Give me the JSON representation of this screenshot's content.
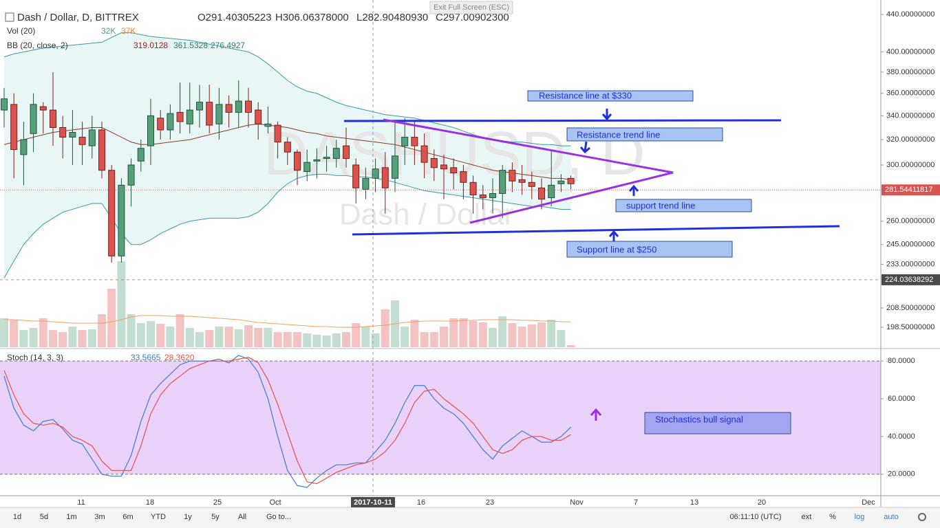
{
  "header": {
    "symbol": "Dash / Dollar, D, BITTREX",
    "open": "O291.40305223",
    "high": "H306.06378000",
    "low": "L282.90480930",
    "close": "C297.00902300",
    "vol_label": "Vol (20)",
    "vol_value": "32K",
    "vol_ma_value": "37K",
    "bb_label": "BB (20, close, 2)",
    "bb_mid": "319.0128",
    "bb_upper": "361.5328",
    "bb_lower": "276.4927",
    "exit": "Exit Full Screen (ESC)",
    "watermark": "DASHUSD, D",
    "watermark_sub": "Dash / Dollar"
  },
  "price_pane": {
    "log": true,
    "ylim": [
      188.7,
      456.5
    ],
    "up_color": "#53a07a",
    "down_color": "#d9534f",
    "yticks": [
      {
        "value": 440,
        "label": "440.00000000"
      },
      {
        "value": 400,
        "label": "400.00000000"
      },
      {
        "value": 380,
        "label": "380.00000000"
      },
      {
        "value": 360,
        "label": "360.00000000"
      },
      {
        "value": 340,
        "label": "340.00000000"
      },
      {
        "value": 320,
        "label": "320.00000000"
      },
      {
        "value": 300,
        "label": "300.00000000"
      },
      {
        "value": 260,
        "label": "260.00000000"
      },
      {
        "value": 245,
        "label": "245.00000000"
      },
      {
        "value": 233,
        "label": "233.00000000"
      },
      {
        "value": 208.5,
        "label": "208.50000000"
      },
      {
        "value": 198.5,
        "label": "198.50000000"
      }
    ],
    "last_price": {
      "value": 281.54411817,
      "label": "281.54411817"
    },
    "crosshair": {
      "value": 224.03638292,
      "label": "224.03638292"
    },
    "candles": [
      [
        345,
        365,
        330,
        355
      ],
      [
        350,
        360,
        290,
        312
      ],
      [
        308,
        335,
        285,
        320
      ],
      [
        325,
        360,
        310,
        350
      ],
      [
        348,
        352,
        325,
        345
      ],
      [
        345,
        380,
        315,
        330
      ],
      [
        330,
        340,
        305,
        322
      ],
      [
        322,
        345,
        300,
        326
      ],
      [
        322,
        335,
        300,
        316
      ],
      [
        315,
        340,
        305,
        328
      ],
      [
        328,
        335,
        290,
        296
      ],
      [
        296,
        300,
        234,
        238
      ],
      [
        238,
        290,
        234,
        285
      ],
      [
        285,
        305,
        270,
        300
      ],
      [
        303,
        320,
        295,
        313
      ],
      [
        315,
        355,
        300,
        340
      ],
      [
        338,
        345,
        320,
        328
      ],
      [
        328,
        350,
        320,
        342
      ],
      [
        343,
        370,
        325,
        335
      ],
      [
        333,
        370,
        325,
        345
      ],
      [
        345,
        368,
        330,
        352
      ],
      [
        352,
        368,
        325,
        332
      ],
      [
        333,
        365,
        320,
        350
      ],
      [
        350,
        358,
        330,
        343
      ],
      [
        343,
        372,
        330,
        353
      ],
      [
        353,
        365,
        330,
        343
      ],
      [
        345,
        352,
        320,
        333
      ],
      [
        331,
        348,
        325,
        333
      ],
      [
        332,
        335,
        305,
        318
      ],
      [
        318,
        322,
        300,
        310
      ],
      [
        310,
        312,
        285,
        296
      ],
      [
        295,
        312,
        288,
        302
      ],
      [
        303,
        313,
        290,
        304
      ],
      [
        305,
        315,
        295,
        306
      ],
      [
        305,
        320,
        298,
        313
      ],
      [
        315,
        330,
        298,
        305
      ],
      [
        300,
        305,
        272,
        283
      ],
      [
        282,
        298,
        275,
        290
      ],
      [
        290,
        305,
        280,
        297
      ],
      [
        298,
        310,
        265,
        283
      ],
      [
        290,
        335,
        280,
        307
      ],
      [
        315,
        338,
        300,
        322
      ],
      [
        322,
        335,
        300,
        315
      ],
      [
        315,
        325,
        290,
        302
      ],
      [
        305,
        312,
        288,
        298
      ],
      [
        300,
        308,
        275,
        297
      ],
      [
        298,
        305,
        282,
        294
      ],
      [
        295,
        300,
        275,
        287
      ],
      [
        287,
        292,
        265,
        278
      ],
      [
        278,
        285,
        268,
        276
      ],
      [
        276,
        290,
        265,
        279
      ],
      [
        279,
        300,
        262,
        296
      ],
      [
        296,
        302,
        280,
        288
      ],
      [
        289,
        300,
        278,
        287
      ],
      [
        287,
        295,
        275,
        284
      ],
      [
        283,
        290,
        268,
        275
      ],
      [
        276,
        312,
        270,
        285
      ],
      [
        286,
        293,
        280,
        288
      ],
      [
        290,
        292,
        282,
        286
      ]
    ],
    "bb_upper": [
      395,
      398,
      400,
      402,
      404,
      405,
      406,
      407,
      408,
      409,
      410,
      415,
      420,
      420,
      418,
      416,
      415,
      414,
      413,
      412,
      410,
      408,
      406,
      404,
      402,
      400,
      395,
      388,
      380,
      372,
      366,
      362,
      360,
      356,
      352,
      349,
      347,
      345,
      343,
      341,
      340,
      339,
      338,
      336,
      334,
      332,
      330,
      327,
      324,
      322,
      320,
      319,
      318,
      318,
      317,
      316,
      316,
      315,
      315
    ],
    "bb_middle": [
      316,
      318,
      320,
      322,
      324,
      326,
      327,
      328,
      329,
      330,
      330,
      326,
      322,
      318,
      316,
      316,
      317,
      318,
      319,
      320,
      322,
      324,
      326,
      328,
      330,
      332,
      333,
      332,
      331,
      330,
      328,
      326,
      325,
      323,
      322,
      321,
      320,
      319,
      318,
      317,
      316,
      314,
      312,
      310,
      308,
      306,
      304,
      302,
      300,
      298,
      296,
      295,
      294,
      293,
      292,
      291,
      290,
      290,
      289
    ],
    "bb_lower": [
      225,
      235,
      245,
      252,
      258,
      262,
      266,
      268,
      270,
      272,
      272,
      262,
      252,
      245,
      245,
      248,
      252,
      255,
      258,
      260,
      261,
      262,
      262,
      262,
      262,
      263,
      266,
      272,
      280,
      286,
      290,
      292,
      293,
      293,
      292,
      292,
      291,
      291,
      290,
      289,
      287,
      285,
      283,
      281,
      280,
      279,
      278,
      277,
      276,
      275,
      274,
      273,
      272,
      271,
      270,
      270,
      269,
      268,
      268
    ]
  },
  "volume": {
    "ylim": [
      0,
      130
    ],
    "values": [
      42,
      40,
      25,
      28,
      42,
      25,
      22,
      30,
      25,
      26,
      48,
      85,
      125,
      48,
      35,
      38,
      34,
      30,
      48,
      28,
      22,
      25,
      30,
      30,
      26,
      32,
      28,
      28,
      22,
      22,
      22,
      20,
      18,
      17,
      20,
      22,
      35,
      30,
      20,
      55,
      68,
      30,
      40,
      22,
      22,
      30,
      42,
      42,
      38,
      36,
      28,
      45,
      35,
      30,
      33,
      36,
      40,
      25,
      3
    ],
    "ma": [
      40,
      40,
      39,
      38,
      38,
      37,
      36,
      35,
      35,
      35,
      35,
      37,
      40,
      44,
      46,
      46,
      46,
      45,
      45,
      45,
      44,
      43,
      42,
      41,
      40,
      38,
      36,
      35,
      34,
      33,
      32,
      31,
      30,
      30,
      29,
      29,
      29,
      30,
      31,
      32,
      34,
      36,
      37,
      38,
      38,
      38,
      38,
      39,
      39,
      40,
      40,
      40,
      40,
      39,
      39,
      38,
      38,
      37,
      37
    ]
  },
  "stoch": {
    "label": "Stoch (14, 3, 3)",
    "k_value": "33.5665",
    "d_value": "28.3620",
    "ylim": [
      9,
      85.5
    ],
    "yticks": [
      {
        "value": 80,
        "label": "80.0000"
      },
      {
        "value": 60,
        "label": "60.0000"
      },
      {
        "value": 40,
        "label": "40.0000"
      },
      {
        "value": 20,
        "label": "20.0000"
      }
    ],
    "k": [
      72,
      55,
      46,
      43,
      48,
      49,
      44,
      38,
      36,
      28,
      20,
      19,
      19,
      30,
      48,
      62,
      68,
      73,
      78,
      80,
      80,
      80,
      81,
      79,
      83,
      81,
      74,
      60,
      40,
      22,
      14,
      13,
      18,
      22,
      25,
      25,
      26,
      26,
      32,
      38,
      47,
      58,
      67,
      67,
      60,
      55,
      52,
      47,
      40,
      33,
      28,
      35,
      39,
      43,
      40,
      37,
      37,
      40,
      45
    ],
    "d": [
      75,
      62,
      52,
      47,
      46,
      47,
      45,
      40,
      38,
      35,
      27,
      22,
      22,
      22,
      35,
      52,
      62,
      68,
      72,
      76,
      78,
      80,
      80,
      80,
      81,
      82,
      79,
      70,
      57,
      42,
      27,
      16,
      15,
      18,
      21,
      23,
      25,
      26,
      28,
      32,
      38,
      47,
      58,
      64,
      65,
      60,
      56,
      52,
      47,
      40,
      33,
      31,
      33,
      38,
      40,
      40,
      38,
      38,
      41
    ]
  },
  "time_labels": [
    "11",
    "18",
    "25",
    "Oct",
    "2017-10-11",
    "16",
    "23",
    "Nov",
    "7",
    "13",
    "20",
    "Dec"
  ],
  "annotations": [
    "Resistance line at $330",
    "Resistance trend line",
    "support trend line",
    "Support line at $250",
    "Stochastics bull signal"
  ],
  "toolbar": {
    "ranges": [
      "1d",
      "5d",
      "1m",
      "3m",
      "6m",
      "YTD",
      "1y",
      "5y",
      "All",
      "Go to..."
    ],
    "clock": "06:11:10 (UTC)",
    "options": [
      "ext",
      "%",
      "log",
      "auto"
    ]
  }
}
